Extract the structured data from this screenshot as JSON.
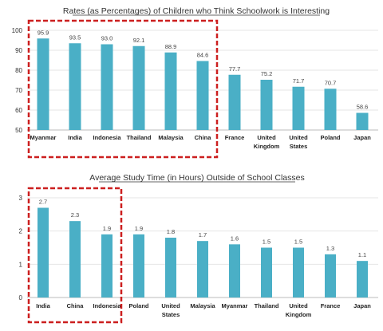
{
  "colors": {
    "bar": "#4aafc6",
    "highlight": "#cc1f1f"
  },
  "chart_data": [
    {
      "type": "bar",
      "title": "Rates (as Percentages) of Children who Think Schoolwork is Interesting",
      "categories": [
        "Myanmar",
        "India",
        "Indonesia",
        "Thailand",
        "Malaysia",
        "China",
        "France",
        "United Kingdom",
        "United States",
        "Poland",
        "Japan"
      ],
      "category_lines": [
        [
          "Myanmar"
        ],
        [
          "India"
        ],
        [
          "Indonesia"
        ],
        [
          "Thailand"
        ],
        [
          "Malaysia"
        ],
        [
          "China"
        ],
        [
          "France"
        ],
        [
          "United",
          "Kingdom"
        ],
        [
          "United",
          "States"
        ],
        [
          "Poland"
        ],
        [
          "Japan"
        ]
      ],
      "values": [
        95.9,
        93.5,
        93.0,
        92.1,
        88.9,
        84.6,
        77.7,
        75.2,
        71.7,
        70.7,
        58.6
      ],
      "value_labels": [
        "95.9",
        "93.5",
        "93.0",
        "92.1",
        "88.9",
        "84.6",
        "77.7",
        "75.2",
        "71.7",
        "70.7",
        "58.6"
      ],
      "ylim": [
        50,
        100
      ],
      "yticks": [
        50,
        60,
        70,
        80,
        90,
        100
      ],
      "ytick_labels": [
        "50",
        "60",
        "70",
        "80",
        "90",
        "100"
      ],
      "grid": true,
      "highlighted_categories": [
        "Myanmar",
        "India",
        "Indonesia",
        "Thailand",
        "Malaysia",
        "China"
      ]
    },
    {
      "type": "bar",
      "title": "Average Study Time (in Hours) Outside of School Classes",
      "categories": [
        "India",
        "China",
        "Indonesia",
        "Poland",
        "United States",
        "Malaysia",
        "Myanmar",
        "Thailand",
        "United Kingdom",
        "France",
        "Japan"
      ],
      "category_lines": [
        [
          "India"
        ],
        [
          "China"
        ],
        [
          "Indonesia"
        ],
        [
          "Poland"
        ],
        [
          "United",
          "States"
        ],
        [
          "Malaysia"
        ],
        [
          "Myanmar"
        ],
        [
          "Thailand"
        ],
        [
          "United",
          "Kingdom"
        ],
        [
          "France"
        ],
        [
          "Japan"
        ]
      ],
      "values": [
        2.7,
        2.3,
        1.9,
        1.9,
        1.8,
        1.7,
        1.6,
        1.5,
        1.5,
        1.3,
        1.1
      ],
      "value_labels": [
        "2.7",
        "2.3",
        "1.9",
        "1.9",
        "1.8",
        "1.7",
        "1.6",
        "1.5",
        "1.5",
        "1.3",
        "1.1"
      ],
      "ylim": [
        0,
        3
      ],
      "yticks": [
        0,
        1,
        2,
        3
      ],
      "ytick_labels": [
        "0",
        "1",
        "2",
        "3"
      ],
      "grid": true,
      "highlighted_categories": [
        "India",
        "China",
        "Indonesia"
      ]
    }
  ]
}
